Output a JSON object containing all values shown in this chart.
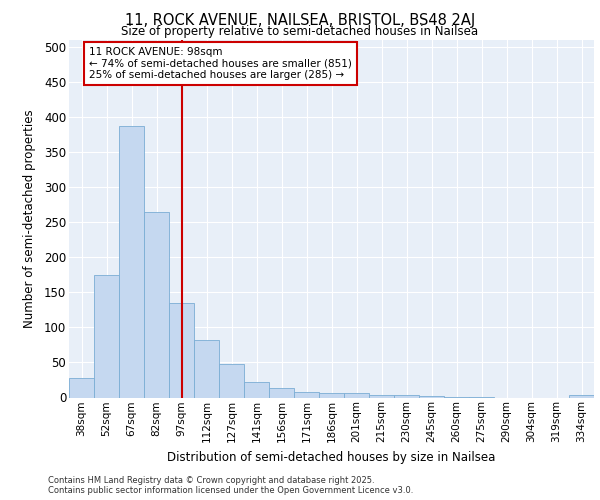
{
  "title_line1": "11, ROCK AVENUE, NAILSEA, BRISTOL, BS48 2AJ",
  "title_line2": "Size of property relative to semi-detached houses in Nailsea",
  "xlabel": "Distribution of semi-detached houses by size in Nailsea",
  "ylabel": "Number of semi-detached properties",
  "categories": [
    "38sqm",
    "52sqm",
    "67sqm",
    "82sqm",
    "97sqm",
    "112sqm",
    "127sqm",
    "141sqm",
    "156sqm",
    "171sqm",
    "186sqm",
    "201sqm",
    "215sqm",
    "230sqm",
    "245sqm",
    "260sqm",
    "275sqm",
    "290sqm",
    "304sqm",
    "319sqm",
    "334sqm"
  ],
  "values": [
    28,
    175,
    388,
    265,
    135,
    82,
    48,
    22,
    13,
    8,
    7,
    6,
    4,
    3,
    2,
    1,
    1,
    0,
    0,
    0,
    3
  ],
  "bar_color": "#c5d8f0",
  "bar_edge_color": "#7aadd4",
  "vline_x_index": 4,
  "vline_color": "#cc0000",
  "annotation_title": "11 ROCK AVENUE: 98sqm",
  "annotation_line2": "← 74% of semi-detached houses are smaller (851)",
  "annotation_line3": "25% of semi-detached houses are larger (285) →",
  "annotation_box_color": "#cc0000",
  "footer_line1": "Contains HM Land Registry data © Crown copyright and database right 2025.",
  "footer_line2": "Contains public sector information licensed under the Open Government Licence v3.0.",
  "bg_color": "#e8eff8",
  "ylim": [
    0,
    510
  ],
  "yticks": [
    0,
    50,
    100,
    150,
    200,
    250,
    300,
    350,
    400,
    450,
    500
  ]
}
